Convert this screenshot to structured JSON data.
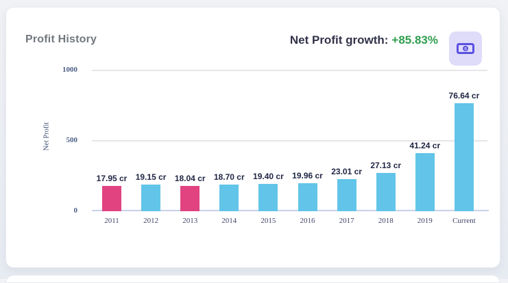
{
  "header": {
    "title": "Profit History",
    "growth_label": "Net Profit growth:",
    "growth_value": "+85.83%",
    "growth_color": "#2f9e4e",
    "icon": "banknote-icon",
    "icon_bg": "#dedcf9",
    "icon_color": "#5b51e0"
  },
  "chart_data": {
    "type": "bar",
    "title": "Profit History",
    "ylabel": "Net Profit",
    "xlabel": "",
    "categories": [
      "2011",
      "2012",
      "2013",
      "2014",
      "2015",
      "2016",
      "2017",
      "2018",
      "2019",
      "Current"
    ],
    "values_cr": [
      17.95,
      19.15,
      18.04,
      18.7,
      19.4,
      19.96,
      23.01,
      27.13,
      41.24,
      76.64
    ],
    "labels": [
      "17.95 cr",
      "19.15 cr",
      "18.04 cr",
      "18.70 cr",
      "19.40 cr",
      "19.96 cr",
      "23.01 cr",
      "27.13 cr",
      "41.24 cr",
      "76.64 cr"
    ],
    "axis_units_per_cr": 10,
    "yticks": [
      0,
      500,
      1000
    ],
    "ylim": [
      0,
      1000
    ],
    "grid": true,
    "legend": false,
    "bar_colors": [
      "#e04380",
      "#62c4e8",
      "#e04380",
      "#62c4e8",
      "#62c4e8",
      "#62c4e8",
      "#62c4e8",
      "#62c4e8",
      "#62c4e8",
      "#62c4e8"
    ],
    "colors": {
      "bar_pink": "#e04380",
      "bar_blue": "#62c4e8",
      "gridline": "#e6e6e9",
      "axis_line": "#c9d1e8",
      "tick_text": "#3e4366",
      "value_text": "#202644"
    }
  }
}
